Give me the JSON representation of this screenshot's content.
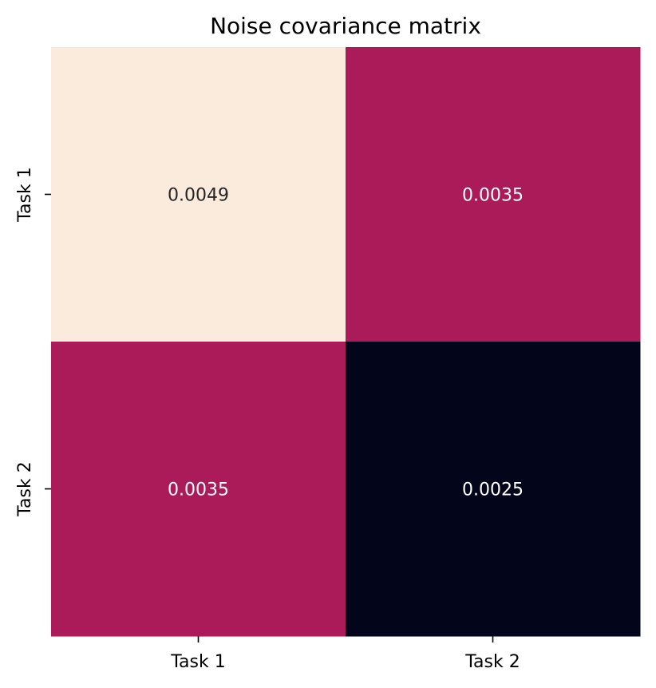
{
  "chart_data": {
    "type": "heatmap",
    "title": "Noise covariance matrix",
    "xlabel": "",
    "ylabel": "",
    "x_categories": [
      "Task 1",
      "Task 2"
    ],
    "y_categories": [
      "Task 1",
      "Task 2"
    ],
    "values": [
      [
        0.0049,
        0.0035
      ],
      [
        0.0035,
        0.0025
      ]
    ],
    "value_labels": [
      [
        "0.0049",
        "0.0035"
      ],
      [
        "0.0035",
        "0.0025"
      ]
    ],
    "colorbar": false,
    "colors": {
      "high": "#faebdd",
      "mid": "#ab1a59",
      "low": "#03051a",
      "label_on_light": "#262626",
      "label_on_dark": "#ffffff"
    }
  }
}
